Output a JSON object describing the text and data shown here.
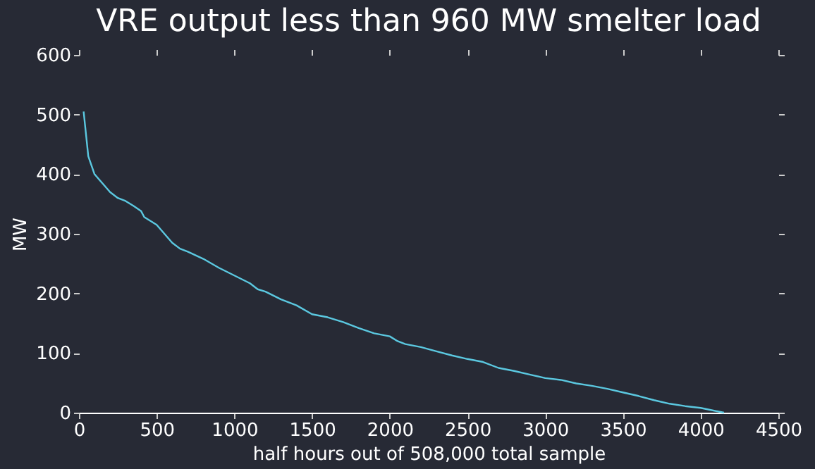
{
  "chart_data": {
    "type": "line",
    "title": "VRE output less than 960 MW smelter load",
    "xlabel": "half hours out of 508,000 total sample",
    "ylabel": "MW",
    "x": [
      30,
      60,
      100,
      150,
      200,
      250,
      300,
      350,
      400,
      420,
      500,
      550,
      600,
      650,
      700,
      800,
      900,
      1000,
      1100,
      1150,
      1200,
      1300,
      1400,
      1500,
      1600,
      1700,
      1800,
      1900,
      2000,
      2050,
      2100,
      2200,
      2300,
      2400,
      2500,
      2600,
      2700,
      2800,
      2900,
      3000,
      3100,
      3200,
      3300,
      3400,
      3500,
      3600,
      3700,
      3800,
      3900,
      4000,
      4150
    ],
    "series": [
      {
        "color": "#5bc8e0",
        "values": [
          505,
          430,
          400,
          385,
          370,
          360,
          355,
          347,
          338,
          328,
          315,
          300,
          285,
          275,
          270,
          258,
          243,
          230,
          217,
          207,
          203,
          190,
          180,
          165,
          160,
          152,
          142,
          133,
          128,
          120,
          115,
          110,
          103,
          96,
          90,
          85,
          75,
          70,
          64,
          58,
          55,
          49,
          45,
          40,
          34,
          28,
          21,
          15,
          11,
          8,
          0
        ]
      }
    ],
    "xlim": [
      0,
      4500
    ],
    "xticks": [
      0,
      500,
      1000,
      1500,
      2000,
      2500,
      3000,
      3500,
      4000,
      4500
    ],
    "ylim": [
      0,
      600
    ],
    "yticks": [
      0,
      100,
      200,
      300,
      400,
      500,
      600
    ],
    "grid": false,
    "legend": false,
    "marker": "none",
    "line_style": "solid"
  }
}
